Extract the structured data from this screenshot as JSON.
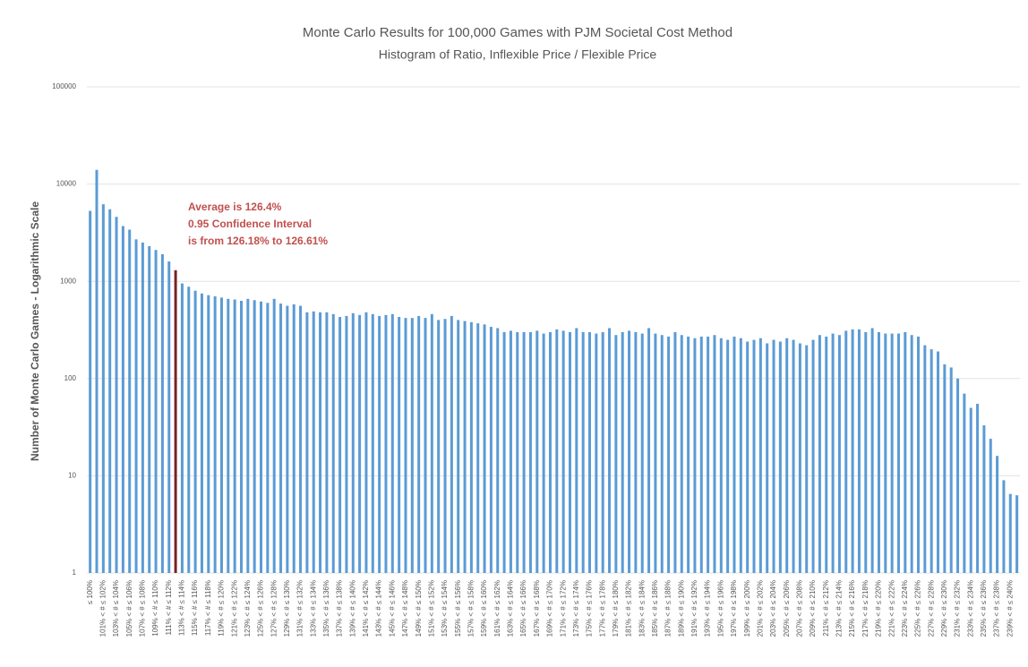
{
  "chart_data": {
    "type": "bar",
    "title": "Monte Carlo Results for 100,000 Games with PJM Societal Cost Method",
    "subtitle": "Histogram of Ratio, Inflexible Price / Flexible Price",
    "y_label": "Number of Monte Carlo Games - Logarithmic Scale",
    "annotations": [
      "Average is 126.4%",
      "0.95 Confidence Interval",
      "is from 126.18% to 126.61%"
    ],
    "annotation_color": "#c0504d",
    "color": "#5b9bd5",
    "highlight": {
      "index": 13,
      "color": "#7b2222"
    },
    "log_scale": true,
    "grid": true,
    "ylim": [
      1,
      100000
    ],
    "yticks": [
      1,
      10,
      100,
      1000,
      10000,
      100000
    ],
    "categories": [
      "≤ 100%",
      null,
      "101% < # ≤ 102%",
      null,
      "103% < # ≤ 104%",
      null,
      "105% < # ≤ 106%",
      null,
      "107% < # ≤ 108%",
      null,
      "109% < # ≤ 110%",
      null,
      "111% < # ≤ 112%",
      null,
      "113% < # ≤ 114%",
      null,
      "115% < # ≤ 116%",
      null,
      "117% < # ≤ 118%",
      null,
      "119% < # ≤ 120%",
      null,
      "121% < # ≤ 122%",
      null,
      "123% < # ≤ 124%",
      null,
      "125% < # ≤ 126%",
      null,
      "127% < # ≤ 128%",
      null,
      "129% < # ≤ 130%",
      null,
      "131% < # ≤ 132%",
      null,
      "133% < # ≤ 134%",
      null,
      "135% < # ≤ 136%",
      null,
      "137% < # ≤ 138%",
      null,
      "139% < # ≤ 140%",
      null,
      "141% < # ≤ 142%",
      null,
      "143% < # ≤ 144%",
      null,
      "145% < # ≤ 146%",
      null,
      "147% < # ≤ 148%",
      null,
      "149% < # ≤ 150%",
      null,
      "151% < # ≤ 152%",
      null,
      "153% < # ≤ 154%",
      null,
      "155% < # ≤ 156%",
      null,
      "157% < # ≤ 158%",
      null,
      "159% < # ≤ 160%",
      null,
      "161% < # ≤ 162%",
      null,
      "163% < # ≤ 164%",
      null,
      "165% < # ≤ 166%",
      null,
      "167% < # ≤ 168%",
      null,
      "169% < # ≤ 170%",
      null,
      "171% < # ≤ 172%",
      null,
      "173% < # ≤ 174%",
      null,
      "175% < # ≤ 176%",
      null,
      "177% < # ≤ 178%",
      null,
      "179% < # ≤ 180%",
      null,
      "181% < # ≤ 182%",
      null,
      "183% < # ≤ 184%",
      null,
      "185% < # ≤ 186%",
      null,
      "187% < # ≤ 188%",
      null,
      "189% < # ≤ 190%",
      null,
      "191% < # ≤ 192%",
      null,
      "193% < # ≤ 194%",
      null,
      "195% < # ≤ 196%",
      null,
      "197% < # ≤ 198%",
      null,
      "199% < # ≤ 200%",
      null,
      "201% < # ≤ 202%",
      null,
      "203% < # ≤ 204%",
      null,
      "205% < # ≤ 206%",
      null,
      "207% < # ≤ 208%",
      null,
      "209% < # ≤ 210%",
      null,
      "211% < # ≤ 212%",
      null,
      "213% < # ≤ 214%",
      null,
      "215% < # ≤ 216%",
      null,
      "217% < # ≤ 218%",
      null,
      "219% < # ≤ 220%",
      null,
      "221% < # ≤ 222%",
      null,
      "223% < # ≤ 224%",
      null,
      "225% < # ≤ 226%",
      null,
      "227% < # ≤ 228%",
      null,
      "229% < # ≤ 230%",
      null,
      "231% < # ≤ 232%",
      null,
      "233% < # ≤ 234%",
      null,
      "235% < # ≤ 236%",
      null,
      "237% < # ≤ 238%",
      null,
      "239% < # ≤ 240%",
      null
    ],
    "values": [
      5300,
      14000,
      6200,
      5500,
      4600,
      3700,
      3400,
      2700,
      2500,
      2300,
      2100,
      1900,
      1600,
      1300,
      950,
      880,
      800,
      750,
      720,
      700,
      680,
      660,
      650,
      630,
      660,
      640,
      620,
      600,
      660,
      590,
      560,
      580,
      560,
      480,
      490,
      480,
      480,
      460,
      430,
      440,
      470,
      450,
      480,
      460,
      440,
      450,
      460,
      430,
      420,
      420,
      440,
      420,
      460,
      400,
      410,
      440,
      400,
      390,
      380,
      370,
      360,
      340,
      330,
      300,
      310,
      300,
      300,
      300,
      310,
      290,
      300,
      320,
      310,
      300,
      330,
      300,
      300,
      290,
      300,
      330,
      280,
      300,
      310,
      300,
      290,
      330,
      290,
      280,
      270,
      300,
      280,
      270,
      260,
      270,
      270,
      280,
      260,
      250,
      270,
      260,
      240,
      250,
      260,
      230,
      250,
      240,
      260,
      250,
      230,
      220,
      250,
      280,
      270,
      290,
      280,
      310,
      320,
      320,
      300,
      330,
      300,
      290,
      290,
      290,
      300,
      280,
      270,
      220,
      200,
      190,
      140,
      130,
      100,
      70,
      50,
      55,
      33,
      24,
      16,
      9,
      6.5,
      6.3
    ]
  }
}
